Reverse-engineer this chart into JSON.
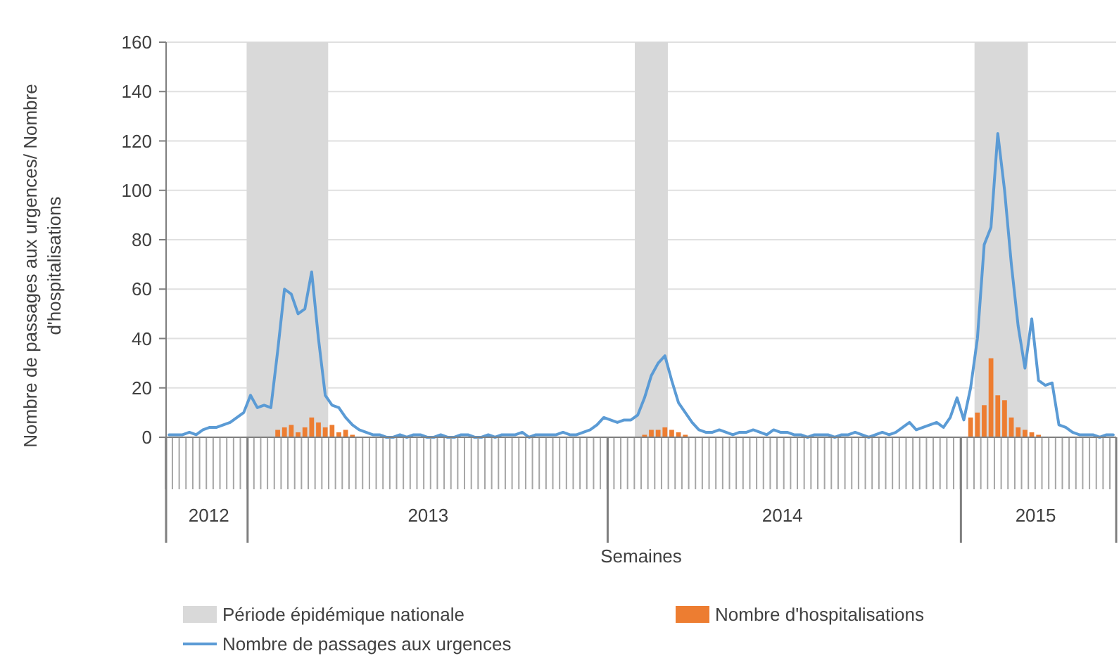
{
  "chart_data": {
    "type": "line",
    "xlabel": "Semaines",
    "ylabel": "Nombre de passages aux urgences/ Nombre d'hospitalisations",
    "x": [
      "2012-10-08",
      "2012-10-15",
      "2012-10-22",
      "2012-10-29",
      "2012-11-05",
      "2012-11-12",
      "2012-11-19",
      "2012-11-26",
      "2012-12-03",
      "2012-12-10",
      "2012-12-17",
      "2012-12-24",
      "2012-12-31",
      "2013-01-07",
      "2013-01-14",
      "2013-01-21",
      "2013-01-28",
      "2013-02-04",
      "2013-02-11",
      "2013-02-18",
      "2013-02-25",
      "2013-03-04",
      "2013-03-11",
      "2013-03-18",
      "2013-03-25",
      "2013-04-01",
      "2013-04-08",
      "2013-04-15",
      "2013-04-22",
      "2013-04-29",
      "2013-05-06",
      "2013-05-13",
      "2013-05-20",
      "2013-05-27",
      "2013-06-03",
      "2013-06-10",
      "2013-06-17",
      "2013-06-24",
      "2013-07-01",
      "2013-07-08",
      "2013-07-15",
      "2013-07-22",
      "2013-07-29",
      "2013-08-05",
      "2013-08-12",
      "2013-08-19",
      "2013-08-26",
      "2013-09-02",
      "2013-09-09",
      "2013-09-16",
      "2013-09-23",
      "2013-09-30",
      "2013-10-07",
      "2013-10-14",
      "2013-10-21",
      "2013-10-28",
      "2013-11-04",
      "2013-11-11",
      "2013-11-18",
      "2013-11-25",
      "2013-12-02",
      "2013-12-09",
      "2013-12-16",
      "2013-12-23",
      "2013-12-30",
      "2014-01-06",
      "2014-01-13",
      "2014-01-20",
      "2014-01-27",
      "2014-02-03",
      "2014-02-10",
      "2014-02-17",
      "2014-02-24",
      "2014-03-03",
      "2014-03-10",
      "2014-03-17",
      "2014-03-24",
      "2014-03-31",
      "2014-04-07",
      "2014-04-14",
      "2014-04-21",
      "2014-04-28",
      "2014-05-05",
      "2014-05-12",
      "2014-05-19",
      "2014-05-26",
      "2014-06-02",
      "2014-06-09",
      "2014-06-16",
      "2014-06-23",
      "2014-06-30",
      "2014-07-07",
      "2014-07-14",
      "2014-07-21",
      "2014-07-28",
      "2014-08-04",
      "2014-08-11",
      "2014-08-18",
      "2014-08-25",
      "2014-09-01",
      "2014-09-08",
      "2014-09-15",
      "2014-09-22",
      "2014-09-29",
      "2014-10-06",
      "2014-10-13",
      "2014-10-20",
      "2014-10-27",
      "2014-11-03",
      "2014-11-10",
      "2014-11-17",
      "2014-11-24",
      "2014-12-01",
      "2014-12-08",
      "2014-12-15",
      "2014-12-22",
      "2014-12-29",
      "2015-01-05",
      "2015-01-12",
      "2015-01-19",
      "2015-01-26",
      "2015-02-02",
      "2015-02-09",
      "2015-02-16",
      "2015-02-23",
      "2015-03-02",
      "2015-03-09",
      "2015-03-16",
      "2015-03-23",
      "2015-03-30",
      "2015-04-06",
      "2015-04-13",
      "2015-04-20",
      "2015-04-27",
      "2015-05-04",
      "2015-05-11",
      "2015-05-18",
      "2015-05-25",
      "2015-06-01",
      "2015-06-08"
    ],
    "xlim": [
      "2012-10-05",
      "2015-06-11"
    ],
    "xticks": [
      {
        "value": "2012-10-05",
        "label": null
      },
      {
        "value": "2012-11-18",
        "label": "2012"
      },
      {
        "value": "2012-12-28",
        "label": null
      },
      {
        "value": "2013-07-02",
        "label": "2013"
      },
      {
        "value": "2014-01-03",
        "label": null
      },
      {
        "value": "2014-07-02",
        "label": "2014"
      },
      {
        "value": "2015-01-02",
        "label": null
      },
      {
        "value": "2015-03-20",
        "label": "2015"
      },
      {
        "value": "2015-06-11",
        "label": null
      }
    ],
    "bands": [
      {
        "axis": "x",
        "from": "2012-12-27",
        "to": "2013-03-21",
        "label": "Période épidémique nationale",
        "color": "#d9d9d9"
      },
      {
        "axis": "x",
        "from": "2014-01-31",
        "to": "2014-03-06",
        "color": "#d9d9d9"
      },
      {
        "axis": "x",
        "from": "2015-01-16",
        "to": "2015-03-12",
        "color": "#d9d9d9"
      }
    ],
    "ylim": [
      0,
      160
    ],
    "yticks": [
      0,
      20,
      40,
      60,
      80,
      100,
      120,
      140,
      160
    ],
    "grid": "y",
    "legend": "bottom",
    "series": [
      {
        "name": "Nombre d'hospitalisations",
        "type": "bar",
        "color": "#ed7d31",
        "values": [
          0,
          0,
          0,
          0,
          0,
          0,
          0,
          0,
          0,
          0,
          0,
          0,
          0,
          0,
          0,
          0,
          3,
          4,
          5,
          2,
          4,
          8,
          6,
          4,
          5,
          2,
          3,
          1,
          0,
          0,
          0,
          0,
          0,
          0,
          0,
          0,
          0,
          0,
          0,
          0,
          0,
          0,
          0,
          0,
          0,
          0,
          0,
          0,
          0,
          0,
          0,
          0,
          0,
          0,
          0,
          0,
          0,
          0,
          0,
          0,
          0,
          0,
          0,
          0,
          0,
          0,
          0,
          0,
          0,
          0,
          1,
          3,
          3,
          4,
          3,
          2,
          1,
          0,
          0,
          0,
          0,
          0,
          0,
          0,
          0,
          0,
          0,
          0,
          0,
          0,
          0,
          0,
          0,
          0,
          0,
          0,
          0,
          0,
          0,
          0,
          0,
          0,
          0,
          0,
          0,
          0,
          0,
          0,
          0,
          0,
          0,
          0,
          0,
          0,
          0,
          0,
          0,
          0,
          8,
          10,
          13,
          32,
          17,
          15,
          8,
          4,
          3,
          2,
          1,
          0,
          0,
          0,
          0,
          0,
          0,
          0,
          0,
          0,
          0,
          0
        ]
      },
      {
        "name": "Nombre de passages aux urgences",
        "color": "#5b9bd5",
        "values": [
          1,
          1,
          1,
          2,
          1,
          3,
          4,
          4,
          5,
          6,
          8,
          10,
          17,
          12,
          13,
          12,
          35,
          60,
          58,
          50,
          52,
          67,
          40,
          17,
          13,
          12,
          8,
          5,
          3,
          2,
          1,
          1,
          0,
          0,
          1,
          0,
          1,
          1,
          0,
          0,
          1,
          0,
          0,
          1,
          1,
          0,
          0,
          1,
          0,
          1,
          1,
          1,
          2,
          0,
          1,
          1,
          1,
          1,
          2,
          1,
          1,
          2,
          3,
          5,
          8,
          7,
          6,
          7,
          7,
          9,
          16,
          25,
          30,
          33,
          23,
          14,
          10,
          6,
          3,
          2,
          2,
          3,
          2,
          1,
          2,
          2,
          3,
          2,
          1,
          3,
          2,
          2,
          1,
          1,
          0,
          1,
          1,
          1,
          0,
          1,
          1,
          2,
          1,
          0,
          1,
          2,
          1,
          2,
          4,
          6,
          3,
          4,
          5,
          6,
          4,
          8,
          16,
          7,
          20,
          40,
          78,
          85,
          123,
          100,
          70,
          45,
          28,
          48,
          23,
          21,
          22,
          5,
          4,
          2,
          1,
          1,
          1,
          0,
          1,
          1
        ]
      }
    ]
  }
}
